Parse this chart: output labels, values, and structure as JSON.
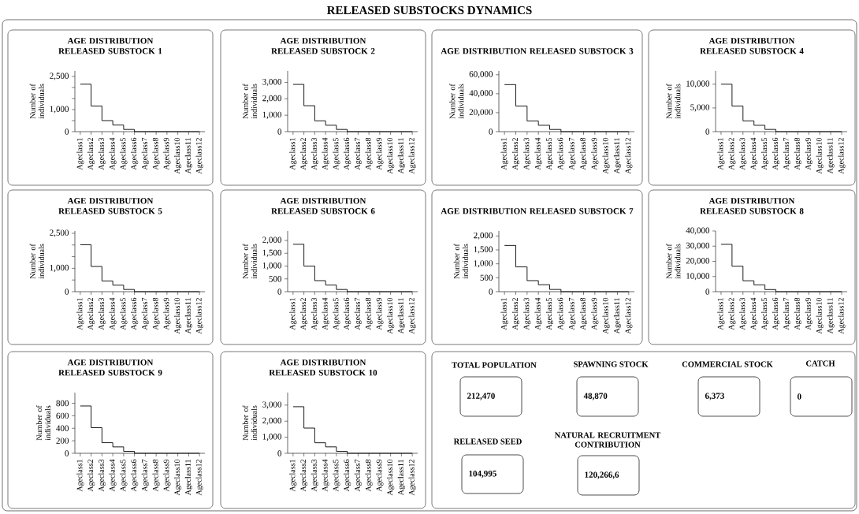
{
  "chart_data": [
    {
      "type": "other",
      "title": "RELEASED SUBSTOCKS DYNAMICS"
    },
    {
      "type": "step",
      "title": "AGE DISTRIBUTION RELEASED SUBSTOCK 1",
      "ylabel": "Number of individuals",
      "categories": [
        "Ageclass1",
        "Ageclass2",
        "Ageclass3",
        "Ageclass4",
        "Ageclass5",
        "Ageclass6",
        "Ageclass7",
        "Ageclass8",
        "Ageclass9",
        "Ageclass10",
        "Ageclass11",
        "Ageclass12"
      ],
      "ylim": [
        0,
        2750
      ],
      "yticks": [
        0,
        {
          "value": 500,
          "label": null
        },
        {
          "value": 1000,
          "label": "1,000"
        },
        {
          "value": 1500,
          "label": null
        },
        {
          "value": 2000,
          "label": null
        },
        {
          "value": 2500,
          "label": "2,500"
        }
      ],
      "series": [
        {
          "color": "#000000",
          "values": [
            2150,
            1160,
            500,
            300,
            100,
            0,
            0,
            0,
            0,
            0,
            0,
            0
          ]
        }
      ]
    },
    {
      "type": "step",
      "title": "AGE DISTRIBUTION RELEASED SUBSTOCK 2",
      "ylabel": "Number of individuals",
      "categories": [
        "Ageclass1",
        "Ageclass2",
        "Ageclass3",
        "Ageclass4",
        "Ageclass5",
        "Ageclass6",
        "Ageclass7",
        "Ageclass8",
        "Ageclass9",
        "Ageclass10",
        "Ageclass11",
        "Ageclass12"
      ],
      "ylim": [
        0,
        3700
      ],
      "yticks": [
        0,
        {
          "value": 1000,
          "label": "1,000"
        },
        {
          "value": 2000,
          "label": "2,000"
        },
        {
          "value": 3000,
          "label": "3,000"
        }
      ],
      "series": [
        {
          "color": "#000000",
          "values": [
            2880,
            1580,
            660,
            390,
            135,
            0,
            0,
            0,
            0,
            0,
            0,
            0
          ]
        }
      ]
    },
    {
      "type": "step",
      "title": "AGE DISTRIBUTION RELEASED SUBSTOCK 3",
      "ylabel": "Number of individuals",
      "categories": [
        "Ageclass1",
        "Ageclass2",
        "Ageclass3",
        "Ageclass4",
        "Ageclass5",
        "Ageclass6",
        "Ageclass7",
        "Ageclass8",
        "Ageclass9",
        "Ageclass10",
        "Ageclass11",
        "Ageclass12"
      ],
      "ylim": [
        0,
        64000
      ],
      "yticks": [
        0,
        {
          "value": 20000,
          "label": "20,000"
        },
        {
          "value": 40000,
          "label": "40,000"
        },
        {
          "value": 60000,
          "label": "60,000"
        }
      ],
      "series": [
        {
          "color": "#000000",
          "values": [
            49600,
            27000,
            11300,
            6700,
            2300,
            0,
            0,
            0,
            0,
            0,
            0,
            0
          ]
        }
      ]
    },
    {
      "type": "step",
      "title": "AGE DISTRIBUTION RELEASED SUBSTOCK 4",
      "ylabel": "Number of individuals",
      "categories": [
        "Ageclass1",
        "Ageclass2",
        "Ageclass3",
        "Ageclass4",
        "Ageclass5",
        "Ageclass6",
        "Ageclass7",
        "Ageclass8",
        "Ageclass9",
        "Ageclass10",
        "Ageclass11",
        "Ageclass12"
      ],
      "ylim": [
        0,
        12800
      ],
      "yticks": [
        0,
        {
          "value": 5000,
          "label": "5,000"
        },
        {
          "value": 10000,
          "label": "10,000"
        }
      ],
      "series": [
        {
          "color": "#000000",
          "values": [
            10000,
            5400,
            2270,
            1340,
            470,
            0,
            0,
            0,
            0,
            0,
            0,
            0
          ]
        }
      ]
    },
    {
      "type": "step",
      "title": "AGE DISTRIBUTION RELEASED SUBSTOCK 5",
      "ylabel": "Number of individuals",
      "categories": [
        "Ageclass1",
        "Ageclass2",
        "Ageclass3",
        "Ageclass4",
        "Ageclass5",
        "Ageclass6",
        "Ageclass7",
        "Ageclass8",
        "Ageclass9",
        "Ageclass10",
        "Ageclass11",
        "Ageclass12"
      ],
      "ylim": [
        0,
        2600
      ],
      "yticks": [
        0,
        {
          "value": 500,
          "label": null
        },
        {
          "value": 1000,
          "label": "1,000"
        },
        {
          "value": 1500,
          "label": null
        },
        {
          "value": 2000,
          "label": null
        },
        {
          "value": 2500,
          "label": "2,500"
        }
      ],
      "series": [
        {
          "color": "#000000",
          "values": [
            2010,
            1080,
            460,
            280,
            95,
            0,
            0,
            0,
            0,
            0,
            0,
            0
          ]
        }
      ]
    },
    {
      "type": "step",
      "title": "AGE DISTRIBUTION RELEASED SUBSTOCK 6",
      "ylabel": "Number of individuals",
      "categories": [
        "Ageclass1",
        "Ageclass2",
        "Ageclass3",
        "Ageclass4",
        "Ageclass5",
        "Ageclass6",
        "Ageclass7",
        "Ageclass8",
        "Ageclass9",
        "Ageclass10",
        "Ageclass11",
        "Ageclass12"
      ],
      "ylim": [
        0,
        2370
      ],
      "yticks": [
        0,
        500,
        {
          "value": 1000,
          "label": "1,000"
        },
        {
          "value": 1500,
          "label": "1,500"
        },
        {
          "value": 2000,
          "label": "2,000"
        }
      ],
      "series": [
        {
          "color": "#000000",
          "values": [
            1850,
            1000,
            430,
            260,
            86,
            0,
            0,
            0,
            0,
            0,
            0,
            0
          ]
        }
      ]
    },
    {
      "type": "step",
      "title": "AGE DISTRIBUTION RELEASED SUBSTOCK 7",
      "ylabel": "Number of individuals",
      "categories": [
        "Ageclass1",
        "Ageclass2",
        "Ageclass3",
        "Ageclass4",
        "Ageclass5",
        "Ageclass6",
        "Ageclass7",
        "Ageclass8",
        "Ageclass9",
        "Ageclass10",
        "Ageclass11",
        "Ageclass12"
      ],
      "ylim": [
        0,
        2180
      ],
      "yticks": [
        0,
        500,
        {
          "value": 1000,
          "label": "1,000"
        },
        {
          "value": 1500,
          "label": "1,500"
        },
        {
          "value": 2000,
          "label": "2,000"
        }
      ],
      "series": [
        {
          "color": "#000000",
          "values": [
            1660,
            890,
            396,
            250,
            80,
            0,
            0,
            0,
            0,
            0,
            0,
            0
          ]
        }
      ]
    },
    {
      "type": "step",
      "title": "AGE DISTRIBUTION RELEASED SUBSTOCK 8",
      "ylabel": "Number of individuals",
      "categories": [
        "Ageclass1",
        "Ageclass2",
        "Ageclass3",
        "Ageclass4",
        "Ageclass5",
        "Ageclass6",
        "Ageclass7",
        "Ageclass8",
        "Ageclass9",
        "Ageclass10",
        "Ageclass11",
        "Ageclass12"
      ],
      "ylim": [
        0,
        40000
      ],
      "yticks": [
        0,
        {
          "value": 10000,
          "label": "10,000"
        },
        {
          "value": 20000,
          "label": "20,000"
        },
        {
          "value": 30000,
          "label": "30,000"
        },
        {
          "value": 40000,
          "label": "40,000"
        }
      ],
      "series": [
        {
          "color": "#000000",
          "values": [
            31200,
            16800,
            7200,
            4500,
            1400,
            0,
            0,
            0,
            0,
            0,
            0,
            0
          ]
        }
      ]
    },
    {
      "type": "step",
      "title": "AGE DISTRIBUTION RELEASED SUBSTOCK 9",
      "ylabel": "Number of individuals",
      "categories": [
        "Ageclass1",
        "Ageclass2",
        "Ageclass3",
        "Ageclass4",
        "Ageclass5",
        "Ageclass6",
        "Ageclass7",
        "Ageclass8",
        "Ageclass9",
        "Ageclass10",
        "Ageclass11",
        "Ageclass12"
      ],
      "ylim": [
        0,
        970
      ],
      "yticks": [
        0,
        200,
        400,
        600,
        800
      ],
      "series": [
        {
          "color": "#000000",
          "values": [
            756,
            409,
            169,
            102,
            31,
            0,
            0,
            0,
            0,
            0,
            0,
            0
          ]
        }
      ]
    },
    {
      "type": "step",
      "title": "AGE DISTRIBUTION RELEASED SUBSTOCK 10",
      "ylabel": "Number of individuals",
      "categories": [
        "Ageclass1",
        "Ageclass2",
        "Ageclass3",
        "Ageclass4",
        "Ageclass5",
        "Ageclass6",
        "Ageclass7",
        "Ageclass8",
        "Ageclass9",
        "Ageclass10",
        "Ageclass11",
        "Ageclass12"
      ],
      "ylim": [
        0,
        3780
      ],
      "yticks": [
        0,
        {
          "value": 1000,
          "label": "1,000"
        },
        {
          "value": 2000,
          "label": "2,000"
        },
        {
          "value": 3000,
          "label": "3,000"
        }
      ],
      "series": [
        {
          "color": "#000000",
          "values": [
            2900,
            1570,
            655,
            400,
            120,
            0,
            0,
            0,
            0,
            0,
            0,
            0
          ]
        }
      ]
    },
    {
      "type": "other",
      "annotations": [
        "TOTAL POPULATION",
        "212,470",
        "SPAWNING STOCK",
        "48,870",
        "COMMERCIAL STOCK",
        "6,373",
        "CATCH",
        "0",
        "RELEASED SEED",
        "104,995",
        "NATURAL RECRUITMENT CONTRIBUTION",
        "120,266,6"
      ]
    }
  ]
}
